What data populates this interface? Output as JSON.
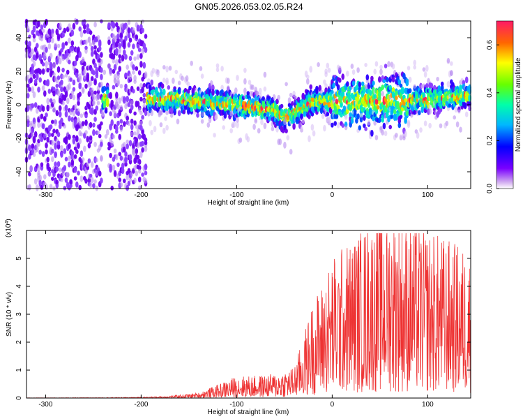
{
  "title": "GN05.2026.053.02.05.R24",
  "chart_data": [
    {
      "type": "heatmap",
      "xlabel": "Height of straight line (km)",
      "ylabel": "Frequency (Hz)",
      "xlim": [
        -320,
        145
      ],
      "ylim": [
        -50,
        50
      ],
      "xticks": [
        -300,
        -200,
        -100,
        0,
        100
      ],
      "yticks": [
        -40,
        -20,
        0,
        20,
        40
      ],
      "colorbar": {
        "label": "Normalized spectral amplitude",
        "range": [
          0.0,
          0.7
        ],
        "ticks": [
          0.0,
          0.2,
          0.4,
          0.6
        ]
      },
      "ridge": {
        "x": [
          -240,
          -200,
          -150,
          -100,
          -60,
          -50,
          -20,
          0,
          50,
          100,
          145
        ],
        "y_center_hz": [
          3,
          4,
          3,
          0,
          -3,
          -8,
          2,
          2,
          2,
          3,
          6
        ]
      }
    },
    {
      "type": "line",
      "xlabel": "Height of straight line (km)",
      "ylabel": "SNR (10 * v/v)",
      "multiplier_label": "(x10",
      "multiplier_exponent": "4",
      "multiplier_close": ")",
      "xlim": [
        -320,
        145
      ],
      "ylim": [
        0,
        6
      ],
      "xticks": [
        -300,
        -200,
        -100,
        0,
        100
      ],
      "yticks": [
        0,
        1,
        2,
        3,
        4,
        5
      ],
      "color": "#ee3333",
      "series": [
        {
          "x": [
            -320,
            -250,
            -200,
            -170,
            -140,
            -120,
            -100,
            -80,
            -60,
            -40,
            -30,
            -20,
            -10,
            0,
            20,
            40,
            60,
            80,
            100,
            120,
            145
          ],
          "y": [
            0.005,
            0.01,
            0.02,
            0.05,
            0.12,
            0.3,
            0.5,
            0.5,
            0.55,
            0.7,
            1.4,
            2.2,
            2.6,
            3.2,
            3.6,
            4.0,
            4.3,
            4.0,
            3.8,
            3.6,
            3.3
          ]
        }
      ]
    }
  ]
}
